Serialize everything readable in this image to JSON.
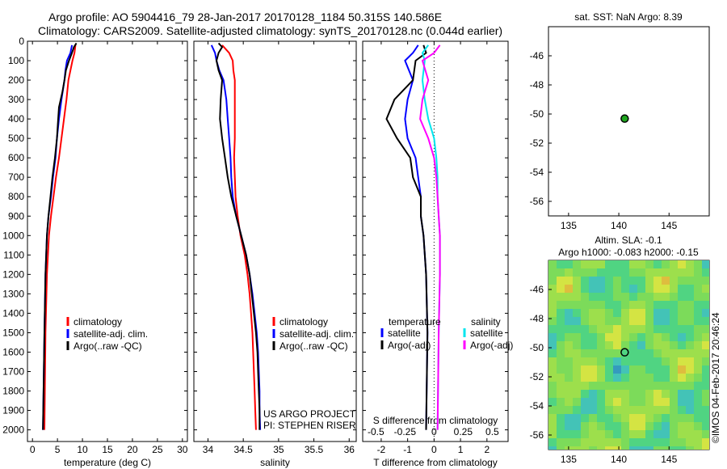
{
  "header": {
    "line1": "Argo profile: AO 5904416_79 28-Jan-2017 20170128_1184 50.315S 140.586E",
    "line2": "Climatology: CARS2009. Satellite-adjusted climatology: synTS_20170128.nc (0.044d earlier)"
  },
  "colors": {
    "climatology": "#ff0000",
    "satellite": "#0000ff",
    "argo": "#000000",
    "sal_satellite": "#00e5ee",
    "sal_argo": "#ff00ff",
    "argo_marker": "#1fa51f"
  },
  "depth_axis": {
    "ticks": [
      0,
      100,
      200,
      300,
      400,
      500,
      600,
      700,
      800,
      900,
      1000,
      1100,
      1200,
      1300,
      1400,
      1500,
      1600,
      1700,
      1800,
      1900,
      2000
    ],
    "range": [
      0,
      2060
    ]
  },
  "chart_data": [
    {
      "type": "line",
      "panel": "temperature",
      "xlabel": "temperature (deg C)",
      "xlim": [
        -1,
        31
      ],
      "x_ticks": [
        "0",
        "5",
        "10",
        "15",
        "20",
        "25",
        "30"
      ],
      "x_tick_values": [
        0,
        5,
        10,
        15,
        20,
        25,
        30
      ],
      "y_inverted": true,
      "legend": [
        "climatology",
        "satellite-adj. clim.",
        "Argo(..raw -QC)"
      ],
      "series": [
        {
          "name": "climatology",
          "color": "#ff0000",
          "depth": [
            20,
            60,
            100,
            150,
            200,
            300,
            400,
            500,
            600,
            700,
            800,
            900,
            1000,
            1200,
            1500,
            2000
          ],
          "values": [
            8.6,
            8.4,
            8.0,
            7.6,
            7.2,
            6.8,
            6.3,
            5.8,
            5.3,
            4.7,
            4.2,
            3.7,
            3.3,
            2.9,
            2.6,
            2.4
          ]
        },
        {
          "name": "satellite-adj. clim.",
          "color": "#0000ff",
          "depth": [
            20,
            60,
            100,
            150,
            200,
            300,
            400,
            500,
            600,
            700,
            800,
            900,
            1000,
            1200,
            1500,
            2000
          ],
          "values": [
            7.9,
            7.6,
            6.9,
            6.6,
            6.4,
            5.8,
            5.3,
            4.9,
            4.6,
            4.1,
            3.7,
            3.2,
            2.9,
            2.6,
            2.4,
            2.1
          ]
        },
        {
          "name": "Argo(..raw -QC)",
          "color": "#000000",
          "depth": [
            10,
            30,
            60,
            100,
            150,
            200,
            260,
            340,
            420,
            500,
            600,
            700,
            800,
            900,
            1000,
            1200,
            1500,
            2000
          ],
          "values": [
            8.8,
            8.3,
            7.9,
            7.3,
            6.7,
            6.4,
            6.0,
            5.3,
            5.1,
            4.9,
            4.5,
            4.0,
            3.6,
            3.2,
            2.9,
            2.6,
            2.4,
            2.1
          ]
        }
      ]
    },
    {
      "type": "line",
      "panel": "salinity",
      "xlabel": "salinity",
      "xlim": [
        33.8,
        36.1
      ],
      "x_ticks": [
        "34",
        "34.5",
        "35",
        "35.5",
        "36"
      ],
      "x_tick_values": [
        34,
        34.5,
        35,
        35.5,
        36
      ],
      "y_inverted": true,
      "legend": [
        "climatology",
        "satellite-adj. clim.",
        "Argo(..raw -QC)"
      ],
      "annotation": [
        "US ARGO PROJECT",
        "PI: STEPHEN RISER"
      ],
      "series": [
        {
          "name": "climatology",
          "color": "#ff0000",
          "depth": [
            20,
            60,
            100,
            150,
            200,
            300,
            400,
            500,
            600,
            700,
            800,
            900,
            1000,
            1100,
            1200,
            1300,
            1400,
            1500,
            1600,
            1700,
            1800,
            1900,
            2000
          ],
          "values": [
            34.2,
            34.3,
            34.35,
            34.36,
            34.38,
            34.38,
            34.38,
            34.38,
            34.37,
            34.38,
            34.39,
            34.42,
            34.46,
            34.52,
            34.56,
            34.59,
            34.61,
            34.63,
            34.64,
            34.65,
            34.66,
            34.67,
            34.68
          ]
        },
        {
          "name": "satellite-adj. clim.",
          "color": "#0000ff",
          "depth": [
            20,
            60,
            100,
            150,
            200,
            300,
            400,
            500,
            600,
            700,
            800,
            900,
            1000,
            1100,
            1200,
            1300,
            1400,
            1500,
            1600,
            1700,
            1800,
            1900,
            2000
          ],
          "values": [
            34.05,
            34.1,
            34.12,
            34.16,
            34.22,
            34.26,
            34.28,
            34.3,
            34.32,
            34.33,
            34.35,
            34.4,
            34.47,
            34.54,
            34.59,
            34.63,
            34.66,
            34.69,
            34.71,
            34.72,
            34.73,
            34.73,
            34.74
          ]
        },
        {
          "name": "Argo(..raw -QC)",
          "color": "#000000",
          "depth": [
            10,
            30,
            60,
            100,
            150,
            200,
            300,
            400,
            500,
            600,
            700,
            800,
            900,
            1000,
            1100,
            1200,
            1300,
            1400,
            1500,
            1600,
            1700,
            1800,
            1900,
            2000
          ],
          "values": [
            34.15,
            34.2,
            34.15,
            34.12,
            34.15,
            34.2,
            34.18,
            34.17,
            34.2,
            34.24,
            34.28,
            34.33,
            34.4,
            34.47,
            34.54,
            34.59,
            34.62,
            34.65,
            34.68,
            34.7,
            34.71,
            34.72,
            34.73,
            34.73
          ]
        }
      ]
    },
    {
      "type": "line",
      "panel": "difference",
      "xlabel": "T difference from climatology",
      "xlabel_top": "S difference from climatology",
      "xlim": [
        -2.7,
        2.8
      ],
      "x_ticks": [
        "-2",
        "-1",
        "0",
        "1",
        "2"
      ],
      "x_tick_values": [
        -2,
        -1,
        0,
        1,
        2
      ],
      "s_ticks": [
        "-0.5",
        "-0.25",
        "0",
        "0.25",
        "0.5"
      ],
      "s_tick_values": [
        -0.5,
        -0.25,
        0,
        0.25,
        0.5
      ],
      "y_inverted": true,
      "legend_temperature_title": "temperature",
      "legend_salinity_title": "salinity",
      "legend_temperature": [
        "satellite",
        "Argo(-adj)"
      ],
      "legend_salinity": [
        "satellite",
        "Argo(-adj)"
      ],
      "series": [
        {
          "name": "satellite",
          "group": "temperature",
          "color": "#0000ff",
          "depth": [
            20,
            60,
            100,
            200,
            300,
            400,
            500,
            600,
            700,
            800,
            900,
            1000,
            1200,
            1500,
            2000
          ],
          "values": [
            -0.6,
            -0.8,
            -1.1,
            -0.8,
            -1.0,
            -1.1,
            -1.0,
            -0.7,
            -0.6,
            -0.5,
            -0.5,
            -0.4,
            -0.3,
            -0.25,
            -0.3
          ]
        },
        {
          "name": "Argo(-adj)",
          "group": "temperature",
          "color": "#000000",
          "depth": [
            20,
            60,
            100,
            200,
            300,
            400,
            500,
            600,
            700,
            800,
            900,
            1000,
            1200,
            1500,
            2000
          ],
          "values": [
            -0.4,
            -0.3,
            -0.7,
            -0.8,
            -1.5,
            -1.8,
            -1.4,
            -0.9,
            -0.8,
            -0.5,
            -0.5,
            -0.4,
            -0.3,
            -0.25,
            -0.3
          ]
        },
        {
          "name": "satellite",
          "group": "salinity",
          "color": "#00e5ee",
          "depth": [
            20,
            60,
            100,
            200,
            300,
            400,
            500,
            600,
            700,
            800,
            900,
            1000,
            1200,
            1500,
            2000
          ],
          "values": [
            -0.05,
            -0.1,
            -0.08,
            -0.1,
            -0.08,
            -0.05,
            0.0,
            0.02,
            0.03,
            0.03,
            0.04,
            0.05,
            0.05,
            0.04,
            0.03
          ]
        },
        {
          "name": "Argo(-adj)",
          "group": "salinity",
          "color": "#ff00ff",
          "depth": [
            20,
            60,
            100,
            200,
            300,
            400,
            500,
            600,
            700,
            800,
            900,
            1000,
            1200,
            1500,
            2000
          ],
          "values": [
            0.05,
            0.0,
            -0.1,
            -0.05,
            -0.1,
            -0.12,
            -0.05,
            0.0,
            0.02,
            0.03,
            0.04,
            0.05,
            0.05,
            0.04,
            0.03
          ]
        }
      ]
    },
    {
      "type": "scatter",
      "panel": "sst_map",
      "title": "sat. SST: NaN Argo: 8.39",
      "xlim": [
        133,
        149
      ],
      "ylim": [
        -57,
        -44
      ],
      "x_ticks": [
        "135",
        "140",
        "145"
      ],
      "x_tick_values": [
        135,
        140,
        145
      ],
      "y_ticks": [
        "-46",
        "-48",
        "-50",
        "-52",
        "-54",
        "-56"
      ],
      "y_tick_values": [
        -46,
        -48,
        -50,
        -52,
        -54,
        -56
      ],
      "points": [
        {
          "x": 140.586,
          "y": -50.315
        }
      ]
    },
    {
      "type": "heatmap",
      "panel": "sla_map",
      "title_line1": "Altim. SLA: -0.1",
      "title_line2": "Argo h1000: -0.083 h2000: -0.15",
      "xlim": [
        133,
        149
      ],
      "ylim": [
        -57,
        -44
      ],
      "x_ticks": [
        "135",
        "140",
        "145"
      ],
      "x_tick_values": [
        135,
        140,
        145
      ],
      "y_ticks": [
        "-46",
        "-48",
        "-50",
        "-52",
        "-54",
        "-56"
      ],
      "y_tick_values": [
        -46,
        -48,
        -50,
        -52,
        -54,
        -56
      ],
      "points": [
        {
          "x": 140.586,
          "y": -50.315
        }
      ]
    }
  ],
  "footer": {
    "credit": "©IMOS 04-Feb-2017 20:46:24"
  }
}
